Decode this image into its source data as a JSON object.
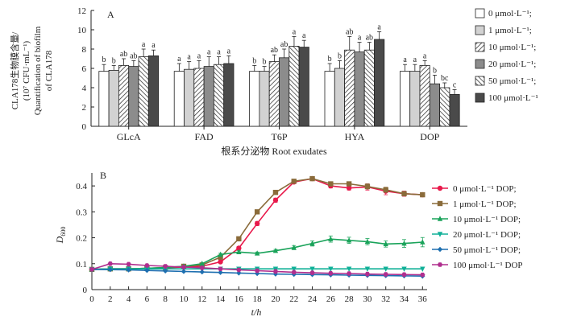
{
  "chart_data": [
    {
      "type": "bar",
      "panel_label": "A",
      "ylabel_lines": [
        "CLA178生物膜含量/",
        "(10⁷ CFU·mL⁻¹)",
        "Quantification of biofilm",
        "of CLA178"
      ],
      "xlabel": "根系分泌物 Root exudates",
      "ylim": [
        0,
        12
      ],
      "yticks": [
        0,
        2,
        4,
        6,
        8,
        10,
        12
      ],
      "categories": [
        "GLcA",
        "FAD",
        "T6P",
        "HYA",
        "DOP"
      ],
      "series": [
        {
          "name": "0 μmol·L⁻¹;",
          "pattern": "white",
          "values": [
            5.7,
            5.7,
            5.7,
            5.7,
            5.7
          ],
          "errors": [
            0.7,
            0.8,
            0.6,
            0.8,
            0.7
          ],
          "letters": [
            "b",
            "a",
            "b",
            "b",
            "a"
          ]
        },
        {
          "name": "1 μmol·L⁻¹;",
          "pattern": "lightgray",
          "values": [
            5.8,
            5.9,
            5.7,
            6.0,
            5.7
          ],
          "errors": [
            0.5,
            0.8,
            0.5,
            0.8,
            0.7
          ],
          "letters": [
            "b",
            "a",
            "b",
            "b",
            "a"
          ]
        },
        {
          "name": "10 μmol·L⁻¹;",
          "pattern": "hatch",
          "values": [
            6.3,
            6.0,
            6.7,
            7.9,
            6.3
          ],
          "errors": [
            0.7,
            0.8,
            0.7,
            1.4,
            0.5
          ],
          "letters": [
            "ab",
            "a",
            "ab",
            "ab",
            "a"
          ]
        },
        {
          "name": "20 μmol·L⁻¹;",
          "pattern": "gray",
          "values": [
            6.2,
            6.2,
            7.1,
            7.7,
            4.4
          ],
          "errors": [
            0.6,
            1.0,
            0.9,
            1.0,
            0.9
          ],
          "letters": [
            "ab",
            "a",
            "ab",
            "a",
            "b"
          ]
        },
        {
          "name": "50 μmol·L⁻¹;",
          "pattern": "crosshatch",
          "values": [
            7.2,
            6.4,
            8.3,
            7.9,
            4.0
          ],
          "errors": [
            0.8,
            0.8,
            1.0,
            0.8,
            0.5
          ],
          "letters": [
            "a",
            "a",
            "a",
            "ab",
            "bc"
          ]
        },
        {
          "name": "100 μmol·L⁻¹",
          "pattern": "dark",
          "values": [
            7.3,
            6.5,
            8.2,
            9.0,
            3.3
          ],
          "errors": [
            0.6,
            0.8,
            0.7,
            0.8,
            0.5
          ],
          "letters": [
            "a",
            "a",
            "a",
            "a",
            "c"
          ]
        }
      ]
    },
    {
      "type": "line",
      "panel_label": "B",
      "ylabel": "D",
      "ylabel_sub": "600",
      "xlabel": "t/h",
      "xlim": [
        0,
        36.5
      ],
      "ylim": [
        0,
        0.45
      ],
      "xticks": [
        0,
        2,
        4,
        6,
        8,
        10,
        12,
        14,
        16,
        18,
        20,
        22,
        24,
        26,
        28,
        30,
        32,
        34,
        36
      ],
      "yticks": [
        0,
        0.1,
        0.2,
        0.3,
        0.4
      ],
      "ytick_labels": [
        "0",
        "0.1",
        "0.2",
        "0.3",
        "0.4"
      ],
      "x": [
        0,
        2,
        4,
        6,
        8,
        10,
        12,
        14,
        16,
        18,
        20,
        22,
        24,
        26,
        28,
        30,
        32,
        34,
        36
      ],
      "series": [
        {
          "name": "0 μmol·L⁻¹ DOP;",
          "color": "#e8194b",
          "marker": "circle",
          "values": [
            0.078,
            0.08,
            0.08,
            0.082,
            0.084,
            0.087,
            0.09,
            0.107,
            0.16,
            0.255,
            0.345,
            0.415,
            0.428,
            0.4,
            0.392,
            0.396,
            0.38,
            0.37,
            0.366
          ],
          "errors": [
            0,
            0,
            0,
            0,
            0,
            0,
            0,
            0.005,
            0.006,
            0.008,
            0.008,
            0.006,
            0.005,
            0.008,
            0.008,
            0.012,
            0.014,
            0.01,
            0.008
          ]
        },
        {
          "name": "1 μmol·L⁻¹ DOP;",
          "color": "#8a6b3a",
          "marker": "square",
          "values": [
            0.078,
            0.08,
            0.08,
            0.082,
            0.085,
            0.09,
            0.095,
            0.125,
            0.196,
            0.3,
            0.375,
            0.418,
            0.428,
            0.408,
            0.408,
            0.398,
            0.385,
            0.37,
            0.366
          ],
          "errors": [
            0,
            0,
            0,
            0,
            0,
            0,
            0,
            0.005,
            0.006,
            0.006,
            0.005,
            0.005,
            0.004,
            0.006,
            0.006,
            0.01,
            0.01,
            0.008,
            0.006
          ]
        },
        {
          "name": "10 μmol·L⁻¹ DOP;",
          "color": "#1aa35a",
          "marker": "triangle-up",
          "values": [
            0.078,
            0.08,
            0.08,
            0.082,
            0.085,
            0.09,
            0.1,
            0.135,
            0.145,
            0.14,
            0.15,
            0.162,
            0.178,
            0.195,
            0.19,
            0.185,
            0.176,
            0.178,
            0.183
          ],
          "errors": [
            0,
            0,
            0,
            0,
            0,
            0,
            0,
            0.005,
            0.005,
            0.005,
            0.005,
            0.008,
            0.01,
            0.012,
            0.012,
            0.012,
            0.012,
            0.015,
            0.018
          ]
        },
        {
          "name": "20 μmol·L⁻¹ DOP;",
          "color": "#10b098",
          "marker": "triangle-down",
          "values": [
            0.078,
            0.08,
            0.08,
            0.08,
            0.08,
            0.08,
            0.08,
            0.08,
            0.08,
            0.08,
            0.08,
            0.08,
            0.08,
            0.08,
            0.08,
            0.08,
            0.08,
            0.08,
            0.08
          ],
          "errors": [
            0,
            0,
            0,
            0,
            0,
            0,
            0,
            0,
            0,
            0,
            0,
            0,
            0,
            0,
            0,
            0,
            0,
            0,
            0
          ]
        },
        {
          "name": "50 μmol·L⁻¹ DOP;",
          "color": "#1e6fb0",
          "marker": "diamond",
          "values": [
            0.078,
            0.077,
            0.076,
            0.074,
            0.072,
            0.07,
            0.068,
            0.066,
            0.064,
            0.062,
            0.06,
            0.059,
            0.058,
            0.057,
            0.056,
            0.055,
            0.054,
            0.053,
            0.052
          ],
          "errors": [
            0,
            0,
            0,
            0,
            0,
            0,
            0,
            0,
            0,
            0,
            0,
            0,
            0,
            0,
            0,
            0,
            0,
            0,
            0
          ]
        },
        {
          "name": "100 μmol·L⁻¹ DOP",
          "color": "#b02e8e",
          "marker": "hexagon",
          "values": [
            0.078,
            0.1,
            0.098,
            0.093,
            0.09,
            0.087,
            0.084,
            0.08,
            0.076,
            0.073,
            0.07,
            0.067,
            0.065,
            0.063,
            0.062,
            0.06,
            0.059,
            0.058,
            0.057
          ],
          "errors": [
            0,
            0,
            0,
            0,
            0,
            0,
            0,
            0,
            0,
            0,
            0,
            0,
            0,
            0,
            0,
            0,
            0,
            0,
            0
          ]
        }
      ]
    }
  ]
}
